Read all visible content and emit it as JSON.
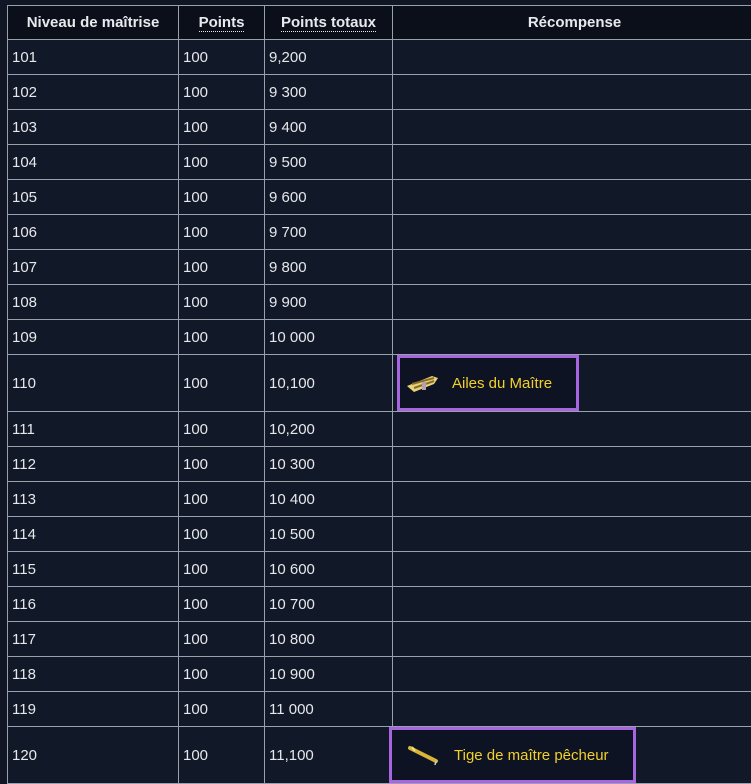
{
  "headers": [
    "Niveau de maîtrise",
    "Points",
    "Points totaux",
    "Récompense"
  ],
  "rows": [
    {
      "level": "101",
      "points": "100",
      "total": "9,200",
      "reward": ""
    },
    {
      "level": "102",
      "points": "100",
      "total": "9 300",
      "reward": ""
    },
    {
      "level": "103",
      "points": "100",
      "total": "9 400",
      "reward": ""
    },
    {
      "level": "104",
      "points": "100",
      "total": "9 500",
      "reward": ""
    },
    {
      "level": "105",
      "points": "100",
      "total": "9 600",
      "reward": ""
    },
    {
      "level": "106",
      "points": "100",
      "total": "9 700",
      "reward": ""
    },
    {
      "level": "107",
      "points": "100",
      "total": "9 800",
      "reward": ""
    },
    {
      "level": "108",
      "points": "100",
      "total": "9 900",
      "reward": ""
    },
    {
      "level": "109",
      "points": "100",
      "total": "10 000",
      "reward": ""
    },
    {
      "level": "110",
      "points": "100",
      "total": "10,100",
      "reward": "Ailes du Maître",
      "icon": "wings-icon"
    },
    {
      "level": "111",
      "points": "100",
      "total": "10,200",
      "reward": ""
    },
    {
      "level": "112",
      "points": "100",
      "total": "10 300",
      "reward": ""
    },
    {
      "level": "113",
      "points": "100",
      "total": "10 400",
      "reward": ""
    },
    {
      "level": "114",
      "points": "100",
      "total": "10 500",
      "reward": ""
    },
    {
      "level": "115",
      "points": "100",
      "total": "10 600",
      "reward": ""
    },
    {
      "level": "116",
      "points": "100",
      "total": "10 700",
      "reward": ""
    },
    {
      "level": "117",
      "points": "100",
      "total": "10 800",
      "reward": ""
    },
    {
      "level": "118",
      "points": "100",
      "total": "10 900",
      "reward": ""
    },
    {
      "level": "119",
      "points": "100",
      "total": "11 000",
      "reward": ""
    },
    {
      "level": "120",
      "points": "100",
      "total": "11,100",
      "reward": "Tige de maître pêcheur",
      "icon": "fishing-rod-icon"
    }
  ],
  "colors": {
    "reward_text": "#f3d02a",
    "reward_border": "#a865e0",
    "background": "#111827"
  }
}
